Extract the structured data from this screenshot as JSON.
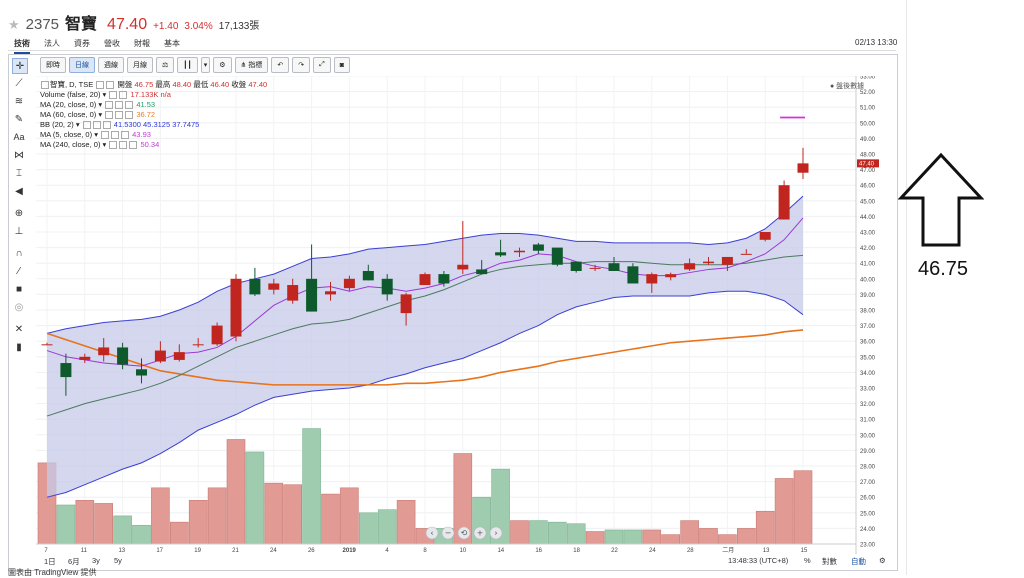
{
  "header": {
    "star": "★",
    "code": "2375",
    "name": "智寶",
    "price": "47.40",
    "change": "+1.40",
    "change_pct": "3.04%",
    "volume": "17,133張",
    "datetime": "02/13 13:30"
  },
  "tabs": [
    "技術",
    "法人",
    "資券",
    "營收",
    "財報",
    "基本"
  ],
  "toolbar": {
    "buttons": [
      "即時",
      "日線",
      "週線",
      "月線",
      "",
      "",
      "",
      "",
      "指標",
      "",
      "",
      "",
      ""
    ]
  },
  "legend": {
    "main": {
      "label": "智寶, D, TSE",
      "open_label": "開盤",
      "open": "46.75",
      "high_label": "最高",
      "high": "48.40",
      "low_label": "最低",
      "low": "46.40",
      "close_label": "收盤",
      "close": "47.40"
    },
    "volume": {
      "label": "Volume (false, 20)",
      "value": "17.133K n/a"
    },
    "ma20": {
      "label": "MA (20, close, 0)",
      "value": "41.53"
    },
    "ma60": {
      "label": "MA (60, close, 0)",
      "value": "36.72"
    },
    "bb": {
      "label": "BB (20, 2)",
      "v1": "41.5300",
      "v2": "45.3125",
      "v3": "37.7475"
    },
    "ma5": {
      "label": "MA (5, close, 0)",
      "value": "43.93"
    },
    "ma240": {
      "label": "MA (240, close, 0)",
      "value": "50.34"
    }
  },
  "compare_label": "● 盤後數據",
  "last_price_tag": "47.40",
  "colors": {
    "up": "#c0261f",
    "down": "#0f5a2c",
    "vol_up": "#e29a94",
    "vol_down": "#9fcbae",
    "bb_fill": "#c6c9e8",
    "bb_line": "#3b3fd4",
    "ma5": "#9b37d4",
    "ma20": "#4d7a60",
    "ma60": "#e8731a",
    "ma240": "#d630d6"
  },
  "chart_data": {
    "type": "candlestick",
    "y_range": [
      23.0,
      53.0
    ],
    "y_ticks": [
      "53.00",
      "52.00",
      "51.00",
      "50.00",
      "49.00",
      "48.00",
      "47.00",
      "46.00",
      "45.00",
      "44.00",
      "43.00",
      "42.00",
      "41.00",
      "40.00",
      "39.00",
      "38.00",
      "37.00",
      "36.00",
      "35.00",
      "34.00",
      "33.00",
      "32.00",
      "31.00",
      "30.00",
      "29.00",
      "28.00",
      "27.00",
      "26.00",
      "25.00",
      "24.00",
      "23.00"
    ],
    "x_labels": [
      "7",
      "11",
      "13",
      "17",
      "19",
      "21",
      "24",
      "26",
      "2019",
      "4",
      "8",
      "10",
      "14",
      "16",
      "18",
      "22",
      "24",
      "28",
      "二月",
      "13",
      "15"
    ],
    "candles": [
      {
        "o": 35.8,
        "h": 35.9,
        "l": 35.8,
        "c": 35.8
      },
      {
        "o": 34.6,
        "h": 35.2,
        "l": 32.5,
        "c": 33.7
      },
      {
        "o": 34.8,
        "h": 35.2,
        "l": 34.6,
        "c": 35.0
      },
      {
        "o": 35.1,
        "h": 36.2,
        "l": 34.7,
        "c": 35.6
      },
      {
        "o": 35.6,
        "h": 35.9,
        "l": 34.2,
        "c": 34.5
      },
      {
        "o": 34.2,
        "h": 34.9,
        "l": 33.3,
        "c": 33.8
      },
      {
        "o": 34.7,
        "h": 36.0,
        "l": 34.6,
        "c": 35.4
      },
      {
        "o": 34.8,
        "h": 35.8,
        "l": 34.7,
        "c": 35.3
      },
      {
        "o": 35.8,
        "h": 36.2,
        "l": 35.6,
        "c": 35.8
      },
      {
        "o": 35.8,
        "h": 37.2,
        "l": 35.7,
        "c": 37.0
      },
      {
        "o": 36.3,
        "h": 40.3,
        "l": 36.0,
        "c": 40.0
      },
      {
        "o": 40.0,
        "h": 40.7,
        "l": 38.9,
        "c": 39.0
      },
      {
        "o": 39.3,
        "h": 40.0,
        "l": 39.0,
        "c": 39.7
      },
      {
        "o": 38.6,
        "h": 40.0,
        "l": 38.4,
        "c": 39.6
      },
      {
        "o": 40.0,
        "h": 42.2,
        "l": 37.9,
        "c": 37.9
      },
      {
        "o": 39.0,
        "h": 39.8,
        "l": 38.6,
        "c": 39.2
      },
      {
        "o": 39.4,
        "h": 40.2,
        "l": 39.2,
        "c": 40.0
      },
      {
        "o": 40.5,
        "h": 40.9,
        "l": 39.9,
        "c": 39.9
      },
      {
        "o": 40.0,
        "h": 40.3,
        "l": 38.6,
        "c": 39.0
      },
      {
        "o": 37.8,
        "h": 39.1,
        "l": 37.0,
        "c": 39.0
      },
      {
        "o": 39.6,
        "h": 40.4,
        "l": 39.6,
        "c": 40.3
      },
      {
        "o": 40.3,
        "h": 40.5,
        "l": 39.5,
        "c": 39.7
      },
      {
        "o": 40.6,
        "h": 43.7,
        "l": 40.3,
        "c": 40.9
      },
      {
        "o": 40.6,
        "h": 41.2,
        "l": 40.4,
        "c": 40.3
      },
      {
        "o": 41.7,
        "h": 42.5,
        "l": 41.4,
        "c": 41.5
      },
      {
        "o": 41.7,
        "h": 42.0,
        "l": 41.4,
        "c": 41.8
      },
      {
        "o": 42.2,
        "h": 42.3,
        "l": 41.6,
        "c": 41.8
      },
      {
        "o": 42.0,
        "h": 42.0,
        "l": 40.8,
        "c": 40.9
      },
      {
        "o": 41.1,
        "h": 41.1,
        "l": 40.4,
        "c": 40.5
      },
      {
        "o": 40.7,
        "h": 40.9,
        "l": 40.5,
        "c": 40.7
      },
      {
        "o": 41.0,
        "h": 41.4,
        "l": 40.5,
        "c": 40.5
      },
      {
        "o": 40.8,
        "h": 41.0,
        "l": 39.7,
        "c": 39.7
      },
      {
        "o": 39.7,
        "h": 40.4,
        "l": 39.1,
        "c": 40.3
      },
      {
        "o": 40.1,
        "h": 40.4,
        "l": 39.9,
        "c": 40.3
      },
      {
        "o": 40.6,
        "h": 41.3,
        "l": 40.5,
        "c": 41.0
      },
      {
        "o": 41.0,
        "h": 41.4,
        "l": 40.9,
        "c": 41.1
      },
      {
        "o": 40.9,
        "h": 41.2,
        "l": 40.5,
        "c": 41.4
      },
      {
        "o": 41.6,
        "h": 41.9,
        "l": 41.6,
        "c": 41.6
      },
      {
        "o": 42.5,
        "h": 43.0,
        "l": 42.4,
        "c": 43.0
      },
      {
        "o": 43.8,
        "h": 46.3,
        "l": 43.8,
        "c": 46.0
      },
      {
        "o": 46.8,
        "h": 48.4,
        "l": 46.4,
        "c": 47.4
      }
    ],
    "volumes": [
      28.2,
      25.5,
      25.8,
      25.6,
      24.8,
      24.2,
      26.6,
      24.4,
      25.8,
      26.6,
      29.7,
      28.9,
      26.9,
      26.8,
      30.4,
      26.2,
      26.6,
      25.0,
      25.2,
      25.8,
      24.0,
      24.0,
      28.8,
      26.0,
      27.8,
      24.5,
      24.5,
      24.4,
      24.3,
      23.8,
      23.9,
      23.9,
      23.9,
      23.6,
      24.5,
      24.0,
      23.6,
      24.0,
      25.1,
      27.2,
      27.7
    ],
    "ma5": [
      35.4,
      35.0,
      34.8,
      34.6,
      34.5,
      34.4,
      34.8,
      35.2,
      35.3,
      35.6,
      36.3,
      37.3,
      38.3,
      38.9,
      39.4,
      39.5,
      39.2,
      39.5,
      39.4,
      39.2,
      39.4,
      39.7,
      40.2,
      40.5,
      41.0,
      41.2,
      41.6,
      41.5,
      41.1,
      40.8,
      40.6,
      40.3,
      40.2,
      40.2,
      40.4,
      40.6,
      40.7,
      41.1,
      41.6,
      42.5,
      43.9
    ],
    "ma20": [
      31.2,
      31.6,
      32.0,
      32.3,
      32.6,
      32.9,
      33.3,
      33.8,
      34.4,
      35.0,
      35.6,
      36.0,
      36.4,
      36.8,
      37.1,
      37.2,
      37.4,
      37.8,
      38.2,
      38.6,
      38.9,
      39.3,
      39.8,
      40.3,
      40.6,
      40.8,
      40.9,
      41.0,
      41.0,
      41.1,
      41.1,
      41.1,
      41.0,
      40.9,
      40.9,
      40.9,
      40.9,
      41.0,
      41.2,
      41.4,
      41.5
    ],
    "ma60": [
      36.5,
      36.1,
      35.7,
      35.3,
      34.9,
      34.5,
      34.1,
      33.9,
      33.7,
      33.5,
      33.4,
      33.3,
      33.2,
      33.2,
      33.2,
      33.2,
      33.2,
      33.2,
      33.2,
      33.3,
      33.3,
      33.4,
      33.5,
      33.7,
      34.0,
      34.2,
      34.4,
      34.7,
      34.9,
      35.1,
      35.3,
      35.5,
      35.7,
      35.9,
      36.0,
      36.1,
      36.2,
      36.3,
      36.4,
      36.6,
      36.72
    ],
    "bb_upper": [
      36.5,
      36.8,
      37.0,
      37.2,
      37.3,
      37.4,
      37.6,
      38.0,
      38.5,
      39.2,
      39.7,
      40.0,
      40.3,
      40.8,
      41.3,
      41.4,
      41.6,
      41.9,
      42.0,
      42.1,
      42.2,
      42.4,
      42.6,
      42.8,
      42.9,
      42.9,
      42.8,
      42.6,
      42.4,
      42.4,
      42.3,
      42.3,
      42.3,
      42.3,
      42.3,
      42.2,
      42.3,
      42.6,
      43.2,
      44.2,
      45.3
    ],
    "bb_lower": [
      26.0,
      26.3,
      26.8,
      27.3,
      27.8,
      28.2,
      28.8,
      29.5,
      30.3,
      30.8,
      31.3,
      31.9,
      32.4,
      32.6,
      32.8,
      32.9,
      33.0,
      33.2,
      33.6,
      33.9,
      34.3,
      34.6,
      34.9,
      35.4,
      35.9,
      36.5,
      37.0,
      37.7,
      38.2,
      38.5,
      38.8,
      38.9,
      38.9,
      38.9,
      38.9,
      39.1,
      39.2,
      39.2,
      39.0,
      38.6,
      37.7
    ],
    "ma240": {
      "value": 50.34,
      "from_index": 39,
      "to_index": 40
    }
  },
  "bottom": {
    "ranges": [
      "1日",
      "6月",
      "3y",
      "5y"
    ],
    "time": "13:48:33 (UTC+8)",
    "options": [
      "%",
      "對數",
      "自動",
      "⚙"
    ]
  },
  "annotation": {
    "value": "46.75"
  },
  "credit": "圖表由 TradingView 提供"
}
